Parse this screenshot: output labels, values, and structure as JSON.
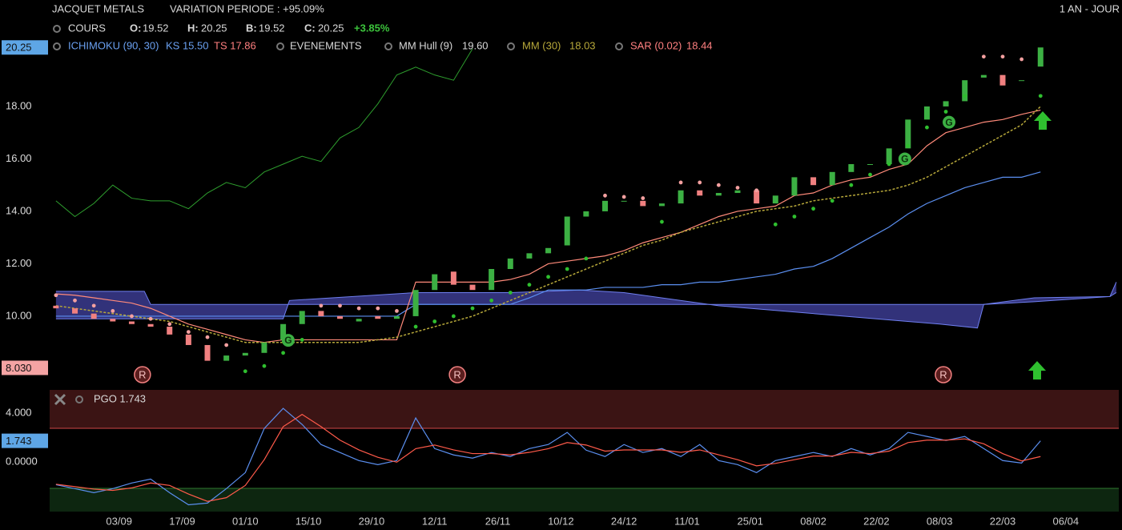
{
  "header": {
    "title": "JACQUET METALS",
    "variation": "VARIATION PERIODE : +95.09%",
    "period": "1 AN - JOUR",
    "cours": "COURS",
    "ohlc": [
      {
        "label": "O:",
        "value": "19.52"
      },
      {
        "label": "H:",
        "value": "20.25"
      },
      {
        "label": "B:",
        "value": "19.52"
      },
      {
        "label": "C:",
        "value": "20.25"
      }
    ],
    "change": "+3.85%"
  },
  "indicators": {
    "ichimoku": "ICHIMOKU (90, 30)",
    "ks": "KS 15.50",
    "ts": "TS 17.86",
    "events": "EVENEMENTS",
    "hull": "MM Hull (9)",
    "hull_value": "19.60",
    "mm": "MM (30)",
    "mm_value": "18.03",
    "sar": "SAR (0.02)",
    "sar_value": "18.44"
  },
  "chart_data": [
    {
      "type": "candlestick",
      "xlim": [
        -1,
        168.4
      ],
      "ylim": [
        7.25,
        22.06
      ],
      "xticks": [
        {
          "value": 10,
          "label": "03/09"
        },
        {
          "value": 20,
          "label": "17/09"
        },
        {
          "value": 30,
          "label": "01/10"
        },
        {
          "value": 40,
          "label": "15/10"
        },
        {
          "value": 50,
          "label": "29/10"
        },
        {
          "value": 60,
          "label": "12/11"
        },
        {
          "value": 70,
          "label": "26/11"
        },
        {
          "value": 80,
          "label": "10/12"
        },
        {
          "value": 90,
          "label": "24/12"
        },
        {
          "value": 100,
          "label": "11/01"
        },
        {
          "value": 110,
          "label": "25/01"
        },
        {
          "value": 120,
          "label": "08/02"
        },
        {
          "value": 130,
          "label": "22/02"
        },
        {
          "value": 140,
          "label": "08/03"
        },
        {
          "value": 150,
          "label": "22/03"
        },
        {
          "value": 160,
          "label": "06/04"
        }
      ],
      "yticks": [
        {
          "value": 10,
          "label": "10.00"
        },
        {
          "value": 12,
          "label": "12.00"
        },
        {
          "value": 14,
          "label": "14.00"
        },
        {
          "value": 16,
          "label": "16.00"
        },
        {
          "value": 18,
          "label": "18.00"
        }
      ],
      "grid": false,
      "price_labels": [
        {
          "value": 20.25,
          "label": "20.25",
          "color": "#5ea6e6"
        },
        {
          "value": 8.03,
          "label": "8.030",
          "color": "#f4a3a3"
        }
      ],
      "x": [
        0,
        3,
        6,
        9,
        12,
        15,
        18,
        21,
        24,
        27,
        30,
        33,
        36,
        39,
        42,
        45,
        48,
        51,
        54,
        57,
        60,
        63,
        66,
        69,
        72,
        75,
        78,
        81,
        84,
        87,
        90,
        93,
        96,
        99,
        102,
        105,
        108,
        111,
        114,
        117,
        120,
        123,
        126,
        129,
        132,
        135,
        138,
        141,
        144,
        147,
        150,
        153,
        156
      ],
      "open": [
        10.4,
        10.3,
        10.1,
        9.9,
        9.8,
        9.7,
        9.6,
        9.3,
        8.9,
        8.3,
        8.5,
        8.6,
        9.1,
        9.7,
        10.2,
        10.0,
        9.8,
        10.0,
        9.9,
        10.0,
        11.0,
        11.7,
        11.2,
        11.0,
        11.8,
        12.2,
        12.4,
        12.7,
        13.8,
        14.0,
        14.4,
        14.4,
        14.2,
        14.3,
        14.8,
        14.6,
        14.7,
        14.8,
        14.3,
        14.6,
        15.3,
        15.0,
        15.5,
        15.8,
        15.8,
        16.4,
        17.5,
        18.0,
        18.2,
        19.1,
        19.2,
        19.0,
        19.52
      ],
      "close": [
        10.3,
        10.1,
        9.9,
        9.8,
        9.7,
        9.6,
        9.3,
        8.9,
        8.3,
        8.5,
        8.6,
        9.0,
        9.7,
        10.2,
        10.0,
        9.9,
        9.9,
        9.9,
        10.0,
        11.0,
        11.6,
        11.2,
        11.0,
        11.8,
        12.2,
        12.4,
        12.6,
        13.8,
        14.0,
        14.4,
        14.4,
        14.2,
        14.3,
        14.8,
        14.6,
        14.7,
        14.8,
        14.3,
        14.6,
        15.3,
        15.0,
        15.5,
        15.8,
        15.8,
        16.4,
        17.5,
        18.0,
        18.2,
        19.0,
        19.2,
        18.8,
        19.0,
        20.25
      ],
      "up_color": "#3cb043",
      "down_color": "#f08080",
      "mm30": {
        "color": "#b7a83a",
        "values": [
          10.4,
          10.3,
          10.2,
          10.1,
          10.0,
          9.9,
          9.8,
          9.6,
          9.4,
          9.2,
          9.0,
          9.0,
          9.0,
          9.0,
          9.0,
          9.0,
          9.0,
          9.1,
          9.2,
          9.4,
          9.6,
          9.8,
          10.0,
          10.3,
          10.6,
          10.9,
          11.2,
          11.5,
          11.8,
          12.1,
          12.4,
          12.7,
          12.9,
          13.2,
          13.4,
          13.6,
          13.8,
          14.0,
          14.1,
          14.2,
          14.4,
          14.5,
          14.6,
          14.7,
          14.8,
          15.0,
          15.3,
          15.7,
          16.1,
          16.5,
          16.9,
          17.3,
          18.0
        ]
      },
      "ks": {
        "color": "#5b8ff0",
        "values": [
          10.0,
          10.0,
          10.0,
          10.0,
          10.0,
          10.0,
          10.0,
          10.0,
          10.0,
          10.0,
          10.0,
          10.0,
          10.0,
          10.0,
          10.0,
          10.0,
          10.0,
          10.0,
          10.0,
          10.45,
          10.45,
          10.45,
          10.45,
          10.45,
          10.45,
          10.7,
          11.0,
          11.0,
          11.0,
          11.1,
          11.1,
          11.1,
          11.2,
          11.2,
          11.3,
          11.3,
          11.4,
          11.5,
          11.6,
          11.8,
          11.9,
          12.2,
          12.6,
          13.0,
          13.4,
          13.9,
          14.3,
          14.6,
          14.9,
          15.1,
          15.3,
          15.3,
          15.5
        ]
      },
      "ts": {
        "color": "#ff8a7a",
        "values": [
          10.85,
          10.8,
          10.7,
          10.6,
          10.5,
          10.3,
          10.0,
          9.7,
          9.5,
          9.3,
          9.1,
          9.0,
          9.1,
          9.1,
          9.1,
          9.1,
          9.1,
          9.1,
          9.1,
          11.3,
          11.3,
          11.3,
          11.3,
          11.3,
          11.4,
          11.6,
          12.0,
          12.1,
          12.2,
          12.3,
          12.5,
          12.8,
          13.0,
          13.2,
          13.5,
          13.8,
          14.0,
          14.1,
          14.2,
          14.6,
          14.7,
          15.0,
          15.2,
          15.3,
          15.6,
          15.8,
          16.5,
          17.0,
          17.2,
          17.4,
          17.5,
          17.7,
          17.86
        ]
      },
      "sar": {
        "up_color": "#2fbf2f",
        "down_color": "#f4a0a0",
        "values": [
          10.8,
          10.6,
          10.4,
          10.2,
          10.0,
          9.9,
          9.7,
          9.4,
          9.2,
          8.9,
          7.9,
          8.1,
          8.6,
          9.1,
          10.4,
          10.4,
          10.3,
          10.3,
          10.2,
          9.6,
          9.8,
          10.0,
          10.3,
          10.6,
          10.9,
          11.2,
          11.5,
          11.8,
          12.2,
          14.6,
          14.55,
          14.5,
          13.6,
          15.1,
          15.1,
          15.0,
          14.9,
          14.8,
          13.5,
          13.8,
          14.1,
          14.4,
          15.0,
          15.4,
          15.8,
          16.5,
          17.2,
          17.8,
          18.4,
          19.9,
          19.9,
          19.8,
          18.4
        ]
      },
      "chikou": {
        "color": "#2e9e2e",
        "x": [
          0,
          3,
          6,
          9,
          12,
          15,
          18,
          21,
          24,
          27,
          30,
          33,
          36,
          39,
          42,
          45,
          48,
          51,
          54,
          57,
          60,
          63,
          66
        ],
        "values": [
          14.4,
          13.8,
          14.3,
          15.0,
          14.5,
          14.4,
          14.4,
          14.1,
          14.7,
          15.1,
          14.9,
          15.5,
          15.8,
          16.1,
          15.9,
          16.8,
          17.2,
          18.1,
          19.2,
          19.5,
          19.2,
          19.0,
          20.2
        ]
      },
      "cloud": {
        "color": "#3b3b8f",
        "line_color": "#6f7ff0",
        "x": [
          0,
          14,
          15,
          36,
          37,
          57,
          72,
          83,
          90,
          105,
          140,
          146,
          147,
          155,
          167,
          168
        ],
        "span_a": [
          10.95,
          10.95,
          10.45,
          10.45,
          10.45,
          10.45,
          10.45,
          10.45,
          10.45,
          10.45,
          10.45,
          10.45,
          10.45,
          10.55,
          10.75,
          10.9
        ],
        "span_b": [
          9.9,
          9.9,
          9.9,
          9.9,
          10.6,
          10.9,
          10.9,
          11.0,
          10.9,
          10.4,
          9.7,
          9.55,
          10.45,
          10.7,
          10.75,
          11.3
        ]
      },
      "events": [
        {
          "x": 13.7,
          "label": "R"
        },
        {
          "x": 63.6,
          "label": "R"
        },
        {
          "x": 140.6,
          "label": "R"
        }
      ],
      "signals": [
        {
          "x": 36.8,
          "y": 9.08,
          "label": "G"
        },
        {
          "x": 134.5,
          "y": 16.0,
          "label": "G"
        },
        {
          "x": 141.5,
          "y": 17.4,
          "label": "G"
        }
      ]
    },
    {
      "type": "line",
      "title": "PGO 1.743",
      "xlim": [
        -1,
        168.4
      ],
      "ylim": [
        -4.1,
        5.9
      ],
      "yticks": [
        {
          "value": 4,
          "label": "4.000"
        },
        {
          "value": 0,
          "label": "0.0000"
        }
      ],
      "last_label": {
        "value": 1.743,
        "label": "1.743",
        "color": "#5ea6e6"
      },
      "x": [
        0,
        3,
        6,
        9,
        12,
        15,
        18,
        21,
        24,
        27,
        30,
        33,
        36,
        39,
        42,
        45,
        48,
        51,
        54,
        57,
        60,
        63,
        66,
        69,
        72,
        75,
        78,
        81,
        84,
        87,
        90,
        93,
        96,
        99,
        102,
        105,
        108,
        111,
        114,
        117,
        120,
        123,
        126,
        129,
        132,
        135,
        138,
        141,
        144,
        147,
        150,
        153,
        156
      ],
      "series": [
        {
          "color": "#5b8ff0",
          "values": [
            -1.84,
            -2.16,
            -2.49,
            -2.16,
            -1.7,
            -1.38,
            -2.49,
            -3.48,
            -3.34,
            -2.16,
            -0.85,
            2.75,
            4.39,
            3.08,
            1.44,
            0.79,
            0.13,
            -0.2,
            0.13,
            3.61,
            1.11,
            0.59,
            0.33,
            0.79,
            0.46,
            1.11,
            1.44,
            2.43,
            0.98,
            0.46,
            1.44,
            0.79,
            1.11,
            0.46,
            1.44,
            0.13,
            -0.2,
            -0.85,
            0.13,
            0.46,
            0.79,
            0.46,
            1.11,
            0.59,
            1.11,
            2.43,
            2.1,
            1.77,
            2.1,
            1.11,
            0.13,
            -0.07,
            1.743
          ]
        },
        {
          "color": "#ff5a4a",
          "values": [
            -1.8,
            -2.0,
            -2.2,
            -2.3,
            -2.1,
            -1.7,
            -1.9,
            -2.6,
            -3.2,
            -2.9,
            -1.9,
            0.2,
            2.9,
            3.9,
            2.9,
            1.8,
            1.0,
            0.4,
            0.0,
            1.1,
            1.4,
            1.0,
            0.7,
            0.7,
            0.6,
            0.8,
            1.1,
            1.6,
            1.4,
            0.9,
            1.0,
            1.0,
            1.0,
            0.8,
            1.0,
            0.6,
            0.2,
            -0.3,
            -0.1,
            0.2,
            0.5,
            0.5,
            0.8,
            0.7,
            0.9,
            1.6,
            1.8,
            1.8,
            1.9,
            1.5,
            0.7,
            0.1,
            0.46
          ]
        }
      ]
    }
  ]
}
